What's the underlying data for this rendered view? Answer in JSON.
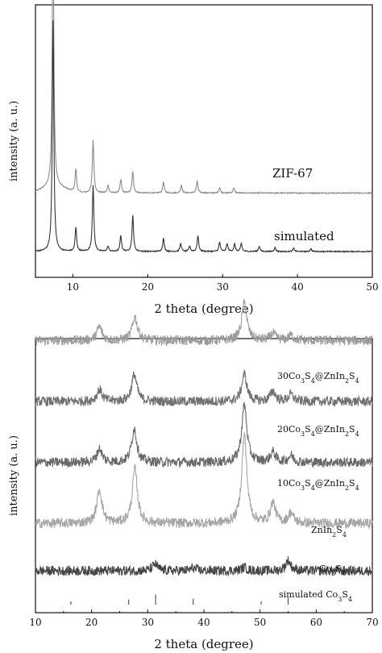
{
  "chart_data": [
    {
      "type": "line",
      "xlabel": "2 theta (degree)",
      "ylabel": "intensity (a. u.)",
      "xlim": [
        5,
        50
      ],
      "x_ticks": [
        10,
        20,
        30,
        40,
        50
      ],
      "series": [
        {
          "name": "ZIF-67",
          "color": "#8c8c8c",
          "baseline": 0.22,
          "peaks": [
            [
              7.35,
              1.0
            ],
            [
              10.4,
              0.09
            ],
            [
              12.7,
              0.2
            ],
            [
              14.7,
              0.03
            ],
            [
              16.4,
              0.05
            ],
            [
              18.0,
              0.08
            ],
            [
              22.1,
              0.04
            ],
            [
              24.5,
              0.03
            ],
            [
              26.6,
              0.045
            ],
            [
              29.6,
              0.02
            ],
            [
              31.5,
              0.02
            ]
          ]
        },
        {
          "name": "simulated",
          "color": "#333333",
          "baseline": 0.0,
          "peaks": [
            [
              7.35,
              0.87
            ],
            [
              10.4,
              0.09
            ],
            [
              12.7,
              0.25
            ],
            [
              14.7,
              0.02
            ],
            [
              16.4,
              0.06
            ],
            [
              18.0,
              0.135
            ],
            [
              22.1,
              0.05
            ],
            [
              24.4,
              0.03
            ],
            [
              25.6,
              0.02
            ],
            [
              26.7,
              0.06
            ],
            [
              29.6,
              0.035
            ],
            [
              30.6,
              0.03
            ],
            [
              31.6,
              0.028
            ],
            [
              32.5,
              0.03
            ],
            [
              34.9,
              0.02
            ],
            [
              37.0,
              0.015
            ],
            [
              39.5,
              0.012
            ],
            [
              41.8,
              0.01
            ]
          ]
        }
      ]
    },
    {
      "type": "line",
      "xlabel": "2 theta (degree)",
      "ylabel": "intensity (a. u.)",
      "xlim": [
        10,
        70
      ],
      "x_ticks": [
        10,
        20,
        30,
        40,
        50,
        60,
        70
      ],
      "series": [
        {
          "name": "30Co3S4@ZnIn2S4",
          "label_parts": [
            [
              "30Co",
              ""
            ],
            [
              "3",
              "sub"
            ],
            [
              "S",
              ""
            ],
            [
              "4",
              "sub"
            ],
            [
              "@ZnIn",
              ""
            ],
            [
              "2",
              "sub"
            ],
            [
              "S",
              ""
            ],
            [
              "4",
              "sub"
            ]
          ],
          "color": "#9a9a9a",
          "baseline": 0.78,
          "peaks": [
            [
              21.4,
              0.04
            ],
            [
              27.7,
              0.07
            ],
            [
              47.2,
              0.11
            ],
            [
              52.3,
              0.02
            ],
            [
              55.5,
              0.015
            ]
          ]
        },
        {
          "name": "20Co3S4@ZnIn2S4",
          "label_parts": [
            [
              "20Co",
              ""
            ],
            [
              "3",
              "sub"
            ],
            [
              "S",
              ""
            ],
            [
              "4",
              "sub"
            ],
            [
              "@ZnIn",
              ""
            ],
            [
              "2",
              "sub"
            ],
            [
              "S",
              ""
            ],
            [
              "4",
              "sub"
            ]
          ],
          "color": "#707070",
          "baseline": 0.6,
          "peaks": [
            [
              21.4,
              0.035
            ],
            [
              27.6,
              0.08
            ],
            [
              47.2,
              0.08
            ],
            [
              52.3,
              0.03
            ],
            [
              55.5,
              0.02
            ]
          ]
        },
        {
          "name": "10Co3S4@ZnIn2S4",
          "label_parts": [
            [
              "10Co",
              ""
            ],
            [
              "3",
              "sub"
            ],
            [
              "S",
              ""
            ],
            [
              "4",
              "sub"
            ],
            [
              "@ZnIn",
              ""
            ],
            [
              "2",
              "sub"
            ],
            [
              "S",
              ""
            ],
            [
              "4",
              "sub"
            ]
          ],
          "color": "#666666",
          "baseline": 0.42,
          "peaks": [
            [
              21.4,
              0.04
            ],
            [
              27.6,
              0.1
            ],
            [
              47.2,
              0.17
            ],
            [
              52.3,
              0.03
            ],
            [
              55.5,
              0.02
            ]
          ]
        },
        {
          "name": "ZnIn2S4",
          "label_parts": [
            [
              "ZnIn",
              ""
            ],
            [
              "2",
              "sub"
            ],
            [
              "S",
              ""
            ],
            [
              "4",
              "sub"
            ]
          ],
          "color": "#a5a5a5",
          "baseline": 0.24,
          "peaks": [
            [
              21.4,
              0.1
            ],
            [
              27.7,
              0.16
            ],
            [
              47.2,
              0.26
            ],
            [
              52.3,
              0.06
            ],
            [
              55.5,
              0.03
            ]
          ]
        },
        {
          "name": "Co3S4",
          "label_parts": [
            [
              "Co",
              ""
            ],
            [
              "3",
              "sub"
            ],
            [
              "S",
              ""
            ],
            [
              "4",
              "sub"
            ]
          ],
          "color": "#444444",
          "baseline": 0.1,
          "peaks": [
            [
              31.3,
              0.02
            ],
            [
              38.1,
              0.008
            ],
            [
              47.2,
              0.01
            ],
            [
              55.0,
              0.03
            ]
          ]
        },
        {
          "name": "simulated Co3S4",
          "label_parts": [
            [
              "simulated Co",
              ""
            ],
            [
              "3",
              "sub"
            ],
            [
              "S",
              ""
            ],
            [
              "4",
              "sub"
            ]
          ],
          "color": "#555555",
          "type": "stick",
          "baseline": 0.0,
          "sticks": [
            [
              16.3,
              0.01
            ],
            [
              26.6,
              0.015
            ],
            [
              31.4,
              0.03
            ],
            [
              38.1,
              0.018
            ],
            [
              50.2,
              0.01
            ],
            [
              55.0,
              0.02
            ]
          ]
        }
      ]
    }
  ]
}
